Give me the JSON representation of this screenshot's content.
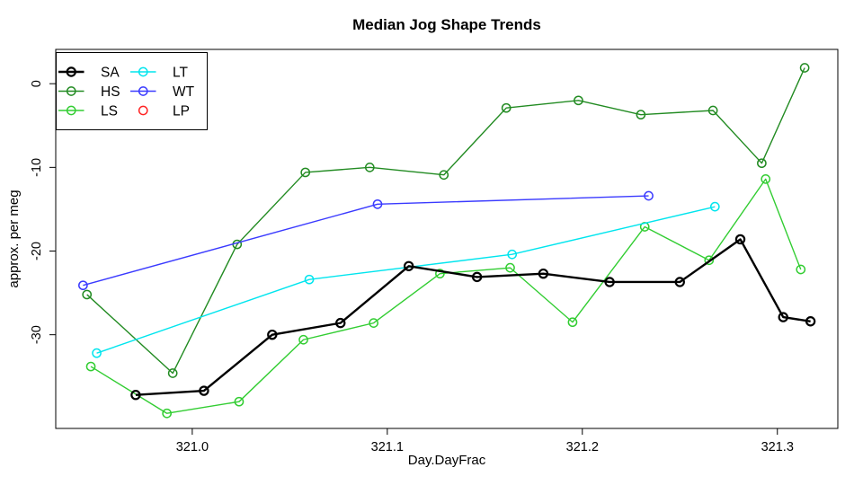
{
  "figure": {
    "title": "Median Jog Shape Trends",
    "xlabel": "Day.DayFrac",
    "ylabel": "approx. per meg"
  },
  "chart_data": {
    "type": "line",
    "title": "Median Jog Shape Trends",
    "xlabel": "Day.DayFrac",
    "ylabel": "approx. per meg",
    "xlim": [
      320.93,
      321.331
    ],
    "ylim": [
      -41.2,
      4.1
    ],
    "x_ticks": [
      321.0,
      321.1,
      321.2,
      321.3
    ],
    "x_tick_labels": [
      "321.0",
      "321.1",
      "321.2",
      "321.3"
    ],
    "y_ticks": [
      0,
      -10,
      -20,
      -30
    ],
    "y_tick_labels": [
      "0",
      "-10",
      "-20",
      "-30"
    ],
    "grid": false,
    "marker": "open-circle",
    "legend_position": "top-left",
    "legend_columns": 2,
    "series": [
      {
        "name": "HS",
        "color": "#228B22",
        "line_width": 1.4,
        "has_line": true,
        "x": [
          320.946,
          320.99,
          321.023,
          321.058,
          321.091,
          321.129,
          321.161,
          321.198,
          321.23,
          321.267,
          321.292,
          321.314
        ],
        "y": [
          -25.2,
          -34.6,
          -19.2,
          -10.6,
          -10.0,
          -10.9,
          -2.9,
          -2.0,
          -3.7,
          -3.2,
          -9.5,
          1.9
        ]
      },
      {
        "name": "LS",
        "color": "#32CD32",
        "line_width": 1.4,
        "has_line": true,
        "x": [
          320.948,
          320.987,
          321.024,
          321.057,
          321.093,
          321.127,
          321.163,
          321.195,
          321.232,
          321.265,
          321.294,
          321.312
        ],
        "y": [
          -33.8,
          -39.4,
          -38.0,
          -30.6,
          -28.6,
          -22.7,
          -22.0,
          -28.5,
          -17.1,
          -21.1,
          -11.4,
          -22.2
        ]
      },
      {
        "name": "LT",
        "color": "#00E5EE",
        "line_width": 1.4,
        "has_line": true,
        "x": [
          320.951,
          321.06,
          321.164,
          321.268
        ],
        "y": [
          -32.2,
          -23.4,
          -20.4,
          -14.7
        ]
      },
      {
        "name": "WT",
        "color": "#3A3AFF",
        "line_width": 1.4,
        "has_line": true,
        "x": [
          320.944,
          321.095,
          321.234
        ],
        "y": [
          -24.1,
          -14.4,
          -13.4
        ]
      },
      {
        "name": "LP",
        "color": "#FF2222",
        "line_width": 1.4,
        "has_line": false,
        "x": [],
        "y": []
      },
      {
        "name": "SA",
        "color": "#000000",
        "line_width": 2.4,
        "has_line": true,
        "x": [
          320.971,
          321.006,
          321.041,
          321.076,
          321.111,
          321.146,
          321.18,
          321.214,
          321.25,
          321.281,
          321.303,
          321.317
        ],
        "y": [
          -37.2,
          -36.7,
          -30.0,
          -28.6,
          -21.8,
          -23.1,
          -22.7,
          -23.7,
          -23.7,
          -18.6,
          -27.9,
          -28.4
        ]
      }
    ],
    "legend": [
      {
        "label": "SA",
        "color": "#000000",
        "has_line": true
      },
      {
        "label": "HS",
        "color": "#228B22",
        "has_line": true
      },
      {
        "label": "LS",
        "color": "#32CD32",
        "has_line": true
      },
      {
        "label": "LT",
        "color": "#00E5EE",
        "has_line": true
      },
      {
        "label": "WT",
        "color": "#3A3AFF",
        "has_line": true
      },
      {
        "label": "LP",
        "color": "#FF2222",
        "has_line": false
      }
    ]
  }
}
